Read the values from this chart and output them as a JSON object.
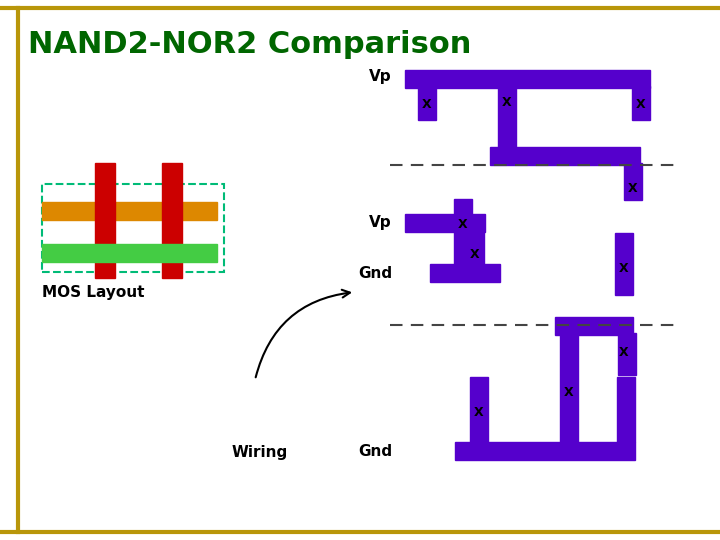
{
  "title": "NAND2-NOR2 Comparison",
  "title_color": "#006600",
  "title_fontsize": 22,
  "bg_color": "#ffffff",
  "border_color": "#b8960a",
  "purple": "#5500cc",
  "red": "#cc0000",
  "orange": "#dd8800",
  "green": "#44cc44",
  "dashed_color": "#444444",
  "mos_box_color": "#00bb77",
  "labels": {
    "vp1": "Vp",
    "gnd1": "Gnd",
    "vp2": "Vp",
    "gnd2": "Gnd",
    "mos": "MOS Layout",
    "wiring": "Wiring"
  }
}
